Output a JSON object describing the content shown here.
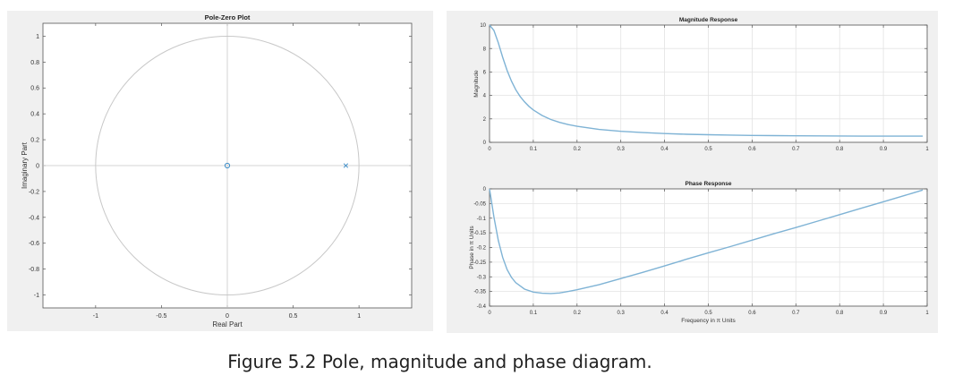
{
  "caption": "Figure 5.2 Pole, magnitude and phase diagram.",
  "chart_data": [
    {
      "type": "scatter",
      "title": "Pole-Zero Plot",
      "xlabel": "Real Part",
      "ylabel": "Imaginary Part",
      "xlim": [
        -1.4,
        1.4
      ],
      "ylim": [
        -1.1,
        1.1
      ],
      "xticks": [
        -1,
        -0.5,
        0,
        0.5,
        1
      ],
      "xtick_labels": [
        "-1",
        "-0.5",
        "0",
        "0.5",
        "1"
      ],
      "yticks": [
        1,
        0.8,
        0.6,
        0.4,
        0.2,
        0,
        -0.2,
        -0.4,
        -0.6,
        -0.8,
        -1
      ],
      "ytick_labels": [
        "1",
        "0.8",
        "0.6",
        "0.4",
        "0.2",
        "0",
        "-0.2",
        "-0.4",
        "-0.6",
        "-0.8",
        "-1"
      ],
      "grid": false,
      "unit_circle": true,
      "zeros": [
        {
          "re": 0,
          "im": 0
        }
      ],
      "poles": [
        {
          "re": 0.9,
          "im": 0
        }
      ],
      "colors": {
        "marker": "#3f8fc9",
        "circle": "#c8c8c8",
        "axes": "#c8c8c8"
      }
    },
    {
      "type": "line",
      "title": "Magnitude Response",
      "xlabel": "",
      "ylabel": "Magnitude",
      "xlim": [
        0,
        1
      ],
      "ylim": [
        0,
        10
      ],
      "xticks": [
        0,
        0.1,
        0.2,
        0.3,
        0.4,
        0.5,
        0.6,
        0.7,
        0.8,
        0.9,
        1
      ],
      "xtick_labels": [
        "0",
        "0.1",
        "0.2",
        "0.3",
        "0.4",
        "0.5",
        "0.6",
        "0.7",
        "0.8",
        "0.9",
        "1"
      ],
      "yticks": [
        0,
        2,
        4,
        6,
        8,
        10
      ],
      "ytick_labels": [
        "0",
        "2",
        "4",
        "6",
        "8",
        "10"
      ],
      "grid": true,
      "series": [
        {
          "x": [
            0,
            0.01,
            0.02,
            0.03,
            0.04,
            0.05,
            0.06,
            0.07,
            0.08,
            0.09,
            0.1,
            0.12,
            0.14,
            0.16,
            0.18,
            0.2,
            0.25,
            0.3,
            0.35,
            0.4,
            0.45,
            0.5,
            0.55,
            0.6,
            0.65,
            0.7,
            0.75,
            0.8,
            0.85,
            0.9,
            0.95,
            0.99
          ],
          "values": [
            10,
            9.54,
            8.49,
            7.25,
            6.14,
            5.22,
            4.49,
            3.91,
            3.45,
            3.07,
            2.76,
            2.29,
            1.95,
            1.7,
            1.51,
            1.37,
            1.1,
            0.94,
            0.83,
            0.75,
            0.69,
            0.65,
            0.62,
            0.59,
            0.57,
            0.56,
            0.55,
            0.54,
            0.53,
            0.53,
            0.53,
            0.53
          ]
        }
      ],
      "colors": {
        "line": "#7fb3d5"
      }
    },
    {
      "type": "line",
      "title": "Phase Response",
      "xlabel": "Frequency in π Units",
      "ylabel": "Phase in π Units",
      "xlim": [
        0,
        1
      ],
      "ylim": [
        -0.4,
        0
      ],
      "xticks": [
        0,
        0.1,
        0.2,
        0.3,
        0.4,
        0.5,
        0.6,
        0.7,
        0.8,
        0.9,
        1
      ],
      "xtick_labels": [
        "0",
        "0.1",
        "0.2",
        "0.3",
        "0.4",
        "0.5",
        "0.6",
        "0.7",
        "0.8",
        "0.9",
        "1"
      ],
      "yticks": [
        0,
        -0.05,
        -0.1,
        -0.15,
        -0.2,
        -0.25,
        -0.3,
        -0.35,
        -0.4
      ],
      "ytick_labels": [
        "0",
        "-0.05",
        "-0.1",
        "-0.15",
        "-0.2",
        "-0.25",
        "-0.3",
        "-0.35",
        "-0.4"
      ],
      "grid": true,
      "series": [
        {
          "x": [
            0,
            0.01,
            0.02,
            0.03,
            0.04,
            0.05,
            0.06,
            0.08,
            0.1,
            0.12,
            0.14,
            0.16,
            0.18,
            0.2,
            0.25,
            0.3,
            0.35,
            0.4,
            0.45,
            0.5,
            0.55,
            0.6,
            0.65,
            0.7,
            0.75,
            0.8,
            0.85,
            0.9,
            0.95,
            0.99
          ],
          "values": [
            0,
            -0.096,
            -0.176,
            -0.234,
            -0.275,
            -0.302,
            -0.32,
            -0.342,
            -0.352,
            -0.356,
            -0.357,
            -0.355,
            -0.35,
            -0.344,
            -0.327,
            -0.306,
            -0.285,
            -0.263,
            -0.24,
            -0.218,
            -0.197,
            -0.175,
            -0.153,
            -0.132,
            -0.11,
            -0.088,
            -0.066,
            -0.044,
            -0.022,
            -0.004
          ]
        }
      ],
      "colors": {
        "line": "#7fb3d5"
      }
    }
  ]
}
